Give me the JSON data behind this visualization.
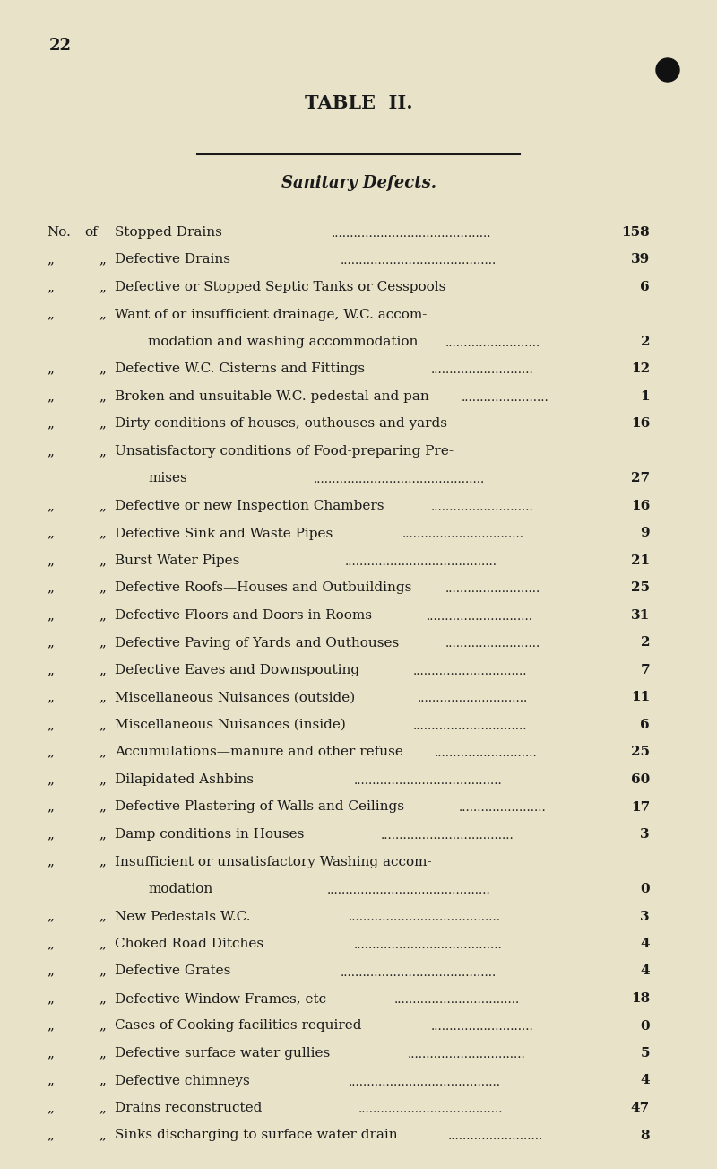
{
  "page_number": "22",
  "title": "TABLE  II.",
  "subtitle": "Sanitary Defects.",
  "bg_color": "#e8e3c8",
  "text_color": "#1a1a1a",
  "page_width": 8.0,
  "page_height": 13.03,
  "dpi": 100,
  "entries": [
    {
      "prefix": "No. of",
      "label": "Stopped Drains",
      "dots": true,
      "value": "158",
      "cont": false
    },
    {
      "prefix": "„  „",
      "label": "Defective Drains",
      "dots": true,
      "value": "39",
      "cont": false
    },
    {
      "prefix": "„  „",
      "label": "Defective or Stopped Septic Tanks or Cesspools",
      "dots": false,
      "value": "6",
      "cont": false
    },
    {
      "prefix": "„  „",
      "label": "Want of or insufficient drainage, W.C. accom-",
      "dots": false,
      "value": "",
      "cont": false
    },
    {
      "prefix": "",
      "label": "modation and washing accommodation",
      "dots": true,
      "value": "2",
      "cont": true
    },
    {
      "prefix": "„  „",
      "label": "Defective W.C. Cisterns and Fittings",
      "dots": true,
      "value": "12",
      "cont": false
    },
    {
      "prefix": "„  „",
      "label": "Broken and unsuitable W.C. pedestal and pan",
      "dots": true,
      "value": "1",
      "cont": false
    },
    {
      "prefix": "„  „",
      "label": "Dirty conditions of houses, outhouses and yards",
      "dots": false,
      "value": "16",
      "cont": false
    },
    {
      "prefix": "„  „",
      "label": "Unsatisfactory conditions of Food-preparing Pre-",
      "dots": false,
      "value": "",
      "cont": false
    },
    {
      "prefix": "",
      "label": "mises",
      "dots": true,
      "value": "27",
      "cont": true
    },
    {
      "prefix": "„  „",
      "label": "Defective or new Inspection Chambers",
      "dots": true,
      "value": "16",
      "cont": false
    },
    {
      "prefix": "„  „",
      "label": "Defective Sink and Waste Pipes",
      "dots": true,
      "value": "9",
      "cont": false
    },
    {
      "prefix": "„  „",
      "label": "Burst Water Pipes",
      "dots": true,
      "value": "21",
      "cont": false
    },
    {
      "prefix": "„  „",
      "label": "Defective Roofs—Houses and Outbuildings",
      "dots": true,
      "value": "25",
      "cont": false
    },
    {
      "prefix": "„  „",
      "label": "Defective Floors and Doors in Rooms",
      "dots": true,
      "value": "31",
      "cont": false
    },
    {
      "prefix": "„  „",
      "label": "Defective Paving of Yards and Outhouses",
      "dots": true,
      "value": "2",
      "cont": false
    },
    {
      "prefix": "„  „",
      "label": "Defective Eaves and Downspouting",
      "dots": true,
      "value": "7",
      "cont": false
    },
    {
      "prefix": "„  „",
      "label": "Miscellaneous Nuisances (outside)",
      "dots": true,
      "value": "11",
      "cont": false
    },
    {
      "prefix": "„  „",
      "label": "Miscellaneous Nuisances (inside)",
      "dots": true,
      "value": "6",
      "cont": false
    },
    {
      "prefix": "„  „",
      "label": "Accumulations—manure and other refuse",
      "dots": true,
      "value": "25",
      "cont": false
    },
    {
      "prefix": "„  „",
      "label": "Dilapidated Ashbins",
      "dots": true,
      "value": "60",
      "cont": false
    },
    {
      "prefix": "„  „",
      "label": "Defective Plastering of Walls and Ceilings",
      "dots": true,
      "value": "17",
      "cont": false
    },
    {
      "prefix": "„  „",
      "label": "Damp conditions in Houses",
      "dots": true,
      "value": "3",
      "cont": false
    },
    {
      "prefix": "„  „",
      "label": "Insufficient or unsatisfactory Washing accom-",
      "dots": false,
      "value": "",
      "cont": false
    },
    {
      "prefix": "",
      "label": "modation",
      "dots": true,
      "value": "0",
      "cont": true
    },
    {
      "prefix": "„  „",
      "label": "New Pedestals W.C.",
      "dots": true,
      "value": "3",
      "cont": false
    },
    {
      "prefix": "„  „",
      "label": "Choked Road Ditches",
      "dots": true,
      "value": "4",
      "cont": false
    },
    {
      "prefix": "„  „",
      "label": "Defective Grates",
      "dots": true,
      "value": "4",
      "cont": false
    },
    {
      "prefix": "„  „",
      "label": "Defective Window Frames, etc",
      "dots": true,
      "value": "18",
      "cont": false
    },
    {
      "prefix": "„  „",
      "label": "Cases of Cooking facilities required",
      "dots": true,
      "value": "0",
      "cont": false
    },
    {
      "prefix": "„  „",
      "label": "Defective surface water gullies",
      "dots": true,
      "value": "5",
      "cont": false
    },
    {
      "prefix": "„  „",
      "label": "Defective chimneys",
      "dots": true,
      "value": "4",
      "cont": false
    },
    {
      "prefix": "„  „",
      "label": "Drains reconstructed",
      "dots": true,
      "value": "47",
      "cont": false
    },
    {
      "prefix": "„  „",
      "label": "Sinks discharging to surface water drain",
      "dots": true,
      "value": "8",
      "cont": false
    }
  ]
}
